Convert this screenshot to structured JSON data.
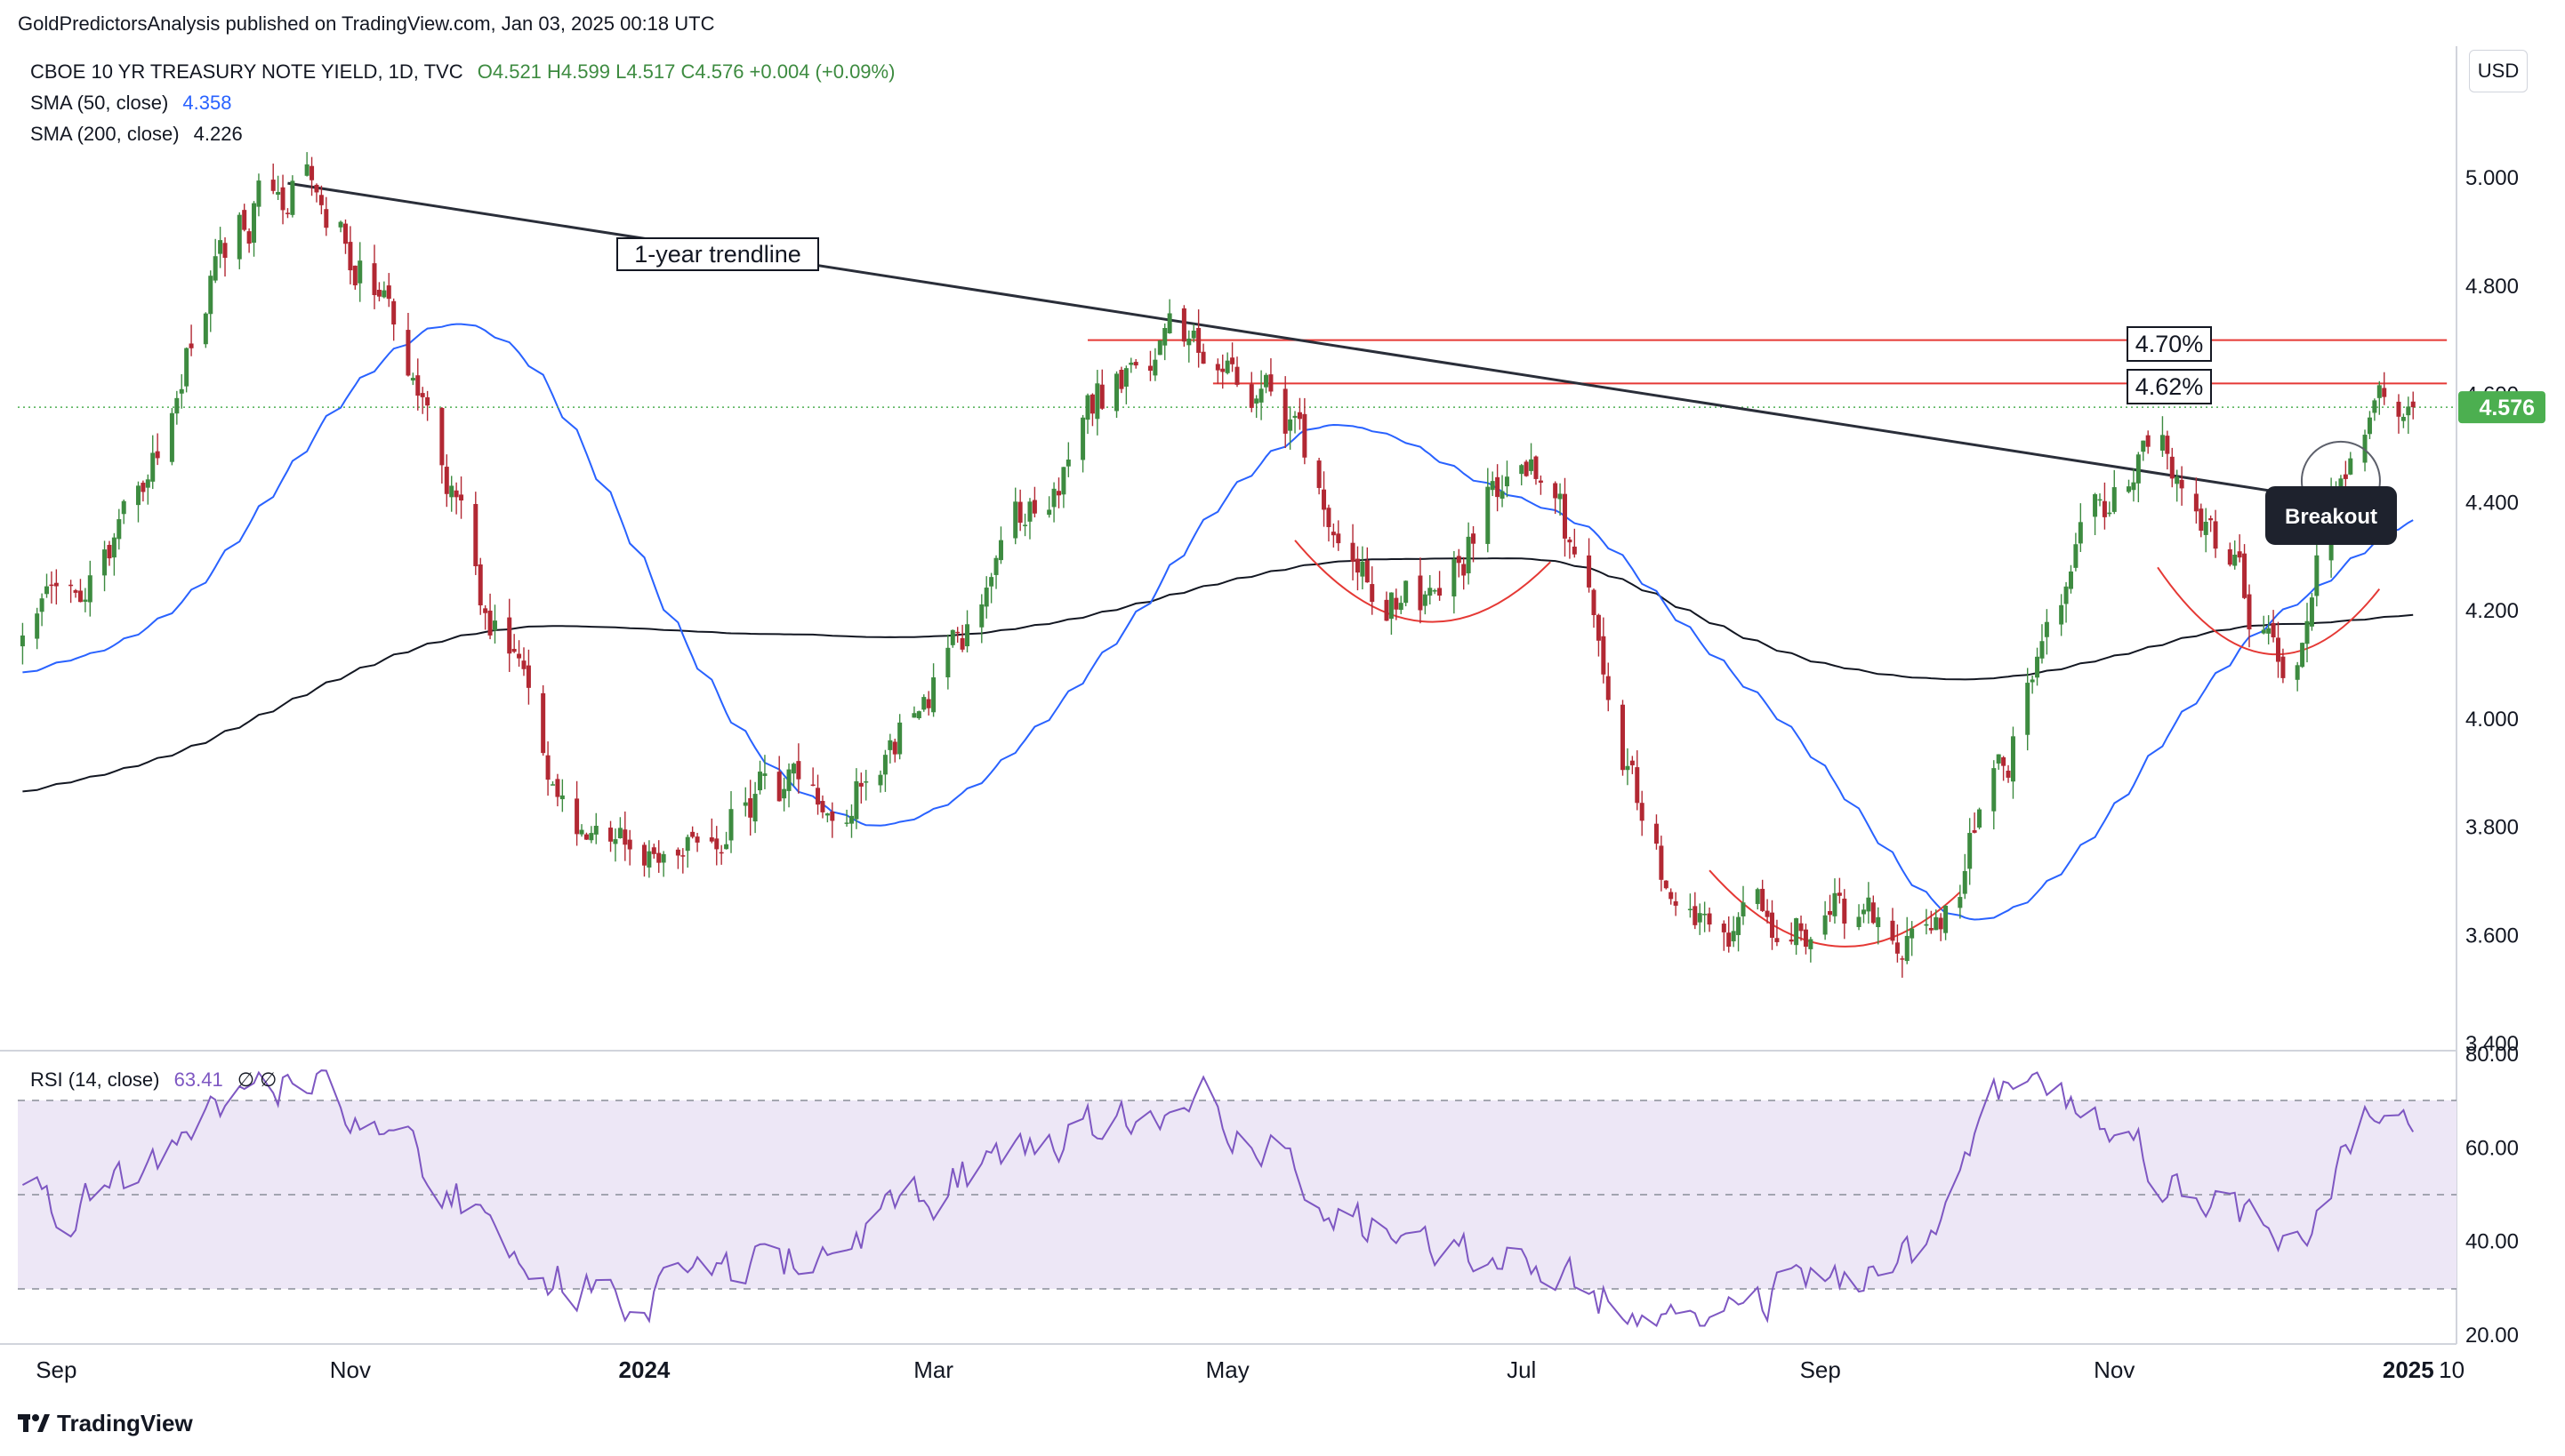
{
  "header": {
    "published": "GoldPredictorsAnalysis published on TradingView.com, Jan 03, 2025 00:18 UTC"
  },
  "legend": {
    "symbol": "CBOE 10 YR TREASURY NOTE YIELD, 1D, TVC",
    "ohlc": "O4.521  H4.599  L4.517  C4.576  +0.004 (+0.09%)",
    "sma50_label": "SMA (50, close)",
    "sma50_value": "4.358",
    "sma200_label": "SMA (200, close)",
    "sma200_value": "4.226",
    "rsi_label": "RSI (14, close)",
    "rsi_value": "63.41",
    "rsi_extra": "∅  ∅"
  },
  "currency": "USD",
  "price_badge": "4.576",
  "annotations": {
    "trendline_label": "1-year trendline",
    "level_470": "4.70%",
    "level_462": "4.62%",
    "breakout": "Breakout"
  },
  "footer": {
    "brand": "TradingView"
  },
  "colors": {
    "up": "#26a69a",
    "up_body": "#3d8b40",
    "down": "#b22833",
    "sma50": "#2962ff",
    "sma200": "#131722",
    "trendline": "#2a2e39",
    "resistance": "#e53935",
    "rsi_line": "#7e57c2",
    "rsi_band": "#ede7f6",
    "price_badge": "#4caf50"
  },
  "chart_data": [
    {
      "type": "candlestick",
      "title": "CBOE 10 YR TREASURY NOTE YIELD, 1D, TVC",
      "y_axis_ticks": [
        "5.000",
        "4.800",
        "4.600",
        "4.400",
        "4.200",
        "4.000",
        "3.800",
        "3.600",
        "3.400"
      ],
      "ylim": [
        3.4,
        5.0
      ],
      "x_axis_ticks": [
        "Sep",
        "Nov",
        "2024",
        "Mar",
        "May",
        "Jul",
        "Sep",
        "Nov",
        "2025",
        "10"
      ],
      "last_close": 4.576,
      "sma50_last": 4.358,
      "sma200_last": 4.226,
      "anchor_prices": [
        {
          "date": "2023-09-01",
          "price": 4.18
        },
        {
          "date": "2023-10-19",
          "price": 4.99
        },
        {
          "date": "2023-12-27",
          "price": 3.79
        },
        {
          "date": "2024-02-01",
          "price": 3.86
        },
        {
          "date": "2024-04-25",
          "price": 4.7
        },
        {
          "date": "2024-06-12",
          "price": 4.22
        },
        {
          "date": "2024-07-01",
          "price": 4.47
        },
        {
          "date": "2024-08-05",
          "price": 3.67
        },
        {
          "date": "2024-09-16",
          "price": 3.62
        },
        {
          "date": "2024-11-13",
          "price": 4.48
        },
        {
          "date": "2024-12-06",
          "price": 4.15
        },
        {
          "date": "2024-12-27",
          "price": 4.63
        },
        {
          "date": "2025-01-02",
          "price": 4.576
        }
      ],
      "horizontal_levels": [
        4.7,
        4.62
      ],
      "trendline": {
        "from": {
          "date": "2023-10-19",
          "price": 4.99
        },
        "to": {
          "date": "2024-12-19",
          "price": 4.4
        }
      },
      "annotations": [
        "1-year trendline",
        "4.70%",
        "4.62%",
        "Breakout"
      ]
    },
    {
      "type": "line",
      "title": "RSI (14, close)",
      "y_axis_ticks": [
        "80.00",
        "60.00",
        "40.00",
        "20.00"
      ],
      "ylim": [
        20,
        80
      ],
      "bands": [
        30,
        50,
        70
      ],
      "last": 63.41,
      "anchor_values": [
        {
          "date": "2023-09-01",
          "value": 48
        },
        {
          "date": "2023-10-19",
          "value": 73
        },
        {
          "date": "2023-12-27",
          "value": 28
        },
        {
          "date": "2024-04-25",
          "value": 68
        },
        {
          "date": "2024-06-12",
          "value": 38
        },
        {
          "date": "2024-08-05",
          "value": 25
        },
        {
          "date": "2024-09-16",
          "value": 34
        },
        {
          "date": "2024-10-10",
          "value": 73
        },
        {
          "date": "2024-12-06",
          "value": 42
        },
        {
          "date": "2024-12-27",
          "value": 70
        },
        {
          "date": "2025-01-02",
          "value": 63.41
        }
      ]
    }
  ]
}
